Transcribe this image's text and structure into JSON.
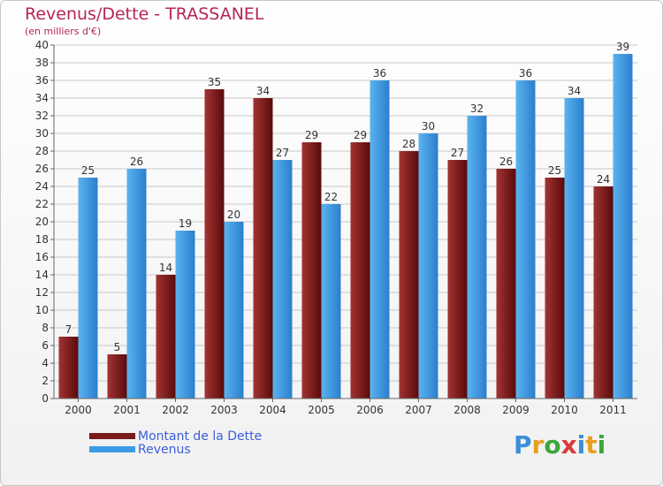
{
  "header": {
    "title": "Revenus/Dette - TRASSANEL",
    "subtitle": "(en milliers d'€)"
  },
  "legend": {
    "items": [
      {
        "label": "Montant de la Dette",
        "color": "#7a1a1a"
      },
      {
        "label": "Revenus",
        "color": "#3d9be6"
      }
    ]
  },
  "logo": {
    "letters": [
      "P",
      "r",
      "o",
      "x",
      "i",
      "t",
      "i"
    ],
    "colors": [
      "#3a8fd8",
      "#e8a020",
      "#3aa83a",
      "#d83a3a",
      "#3a8fd8",
      "#e8a020",
      "#3aa83a"
    ]
  },
  "colors": {
    "debt_light": "#a33434",
    "debt_dark": "#5a0a0a",
    "revenue_light": "#5cb3f0",
    "revenue_dark": "#2a7fcc",
    "grid": "#c8c8c8",
    "axis_text": "#333333"
  },
  "chart_data": {
    "type": "bar",
    "categories": [
      "2000",
      "2001",
      "2002",
      "2003",
      "2004",
      "2005",
      "2006",
      "2007",
      "2008",
      "2009",
      "2010",
      "2011"
    ],
    "series": [
      {
        "name": "Montant de la Dette",
        "values": [
          7,
          5,
          14,
          35,
          34,
          29,
          29,
          28,
          27,
          26,
          25,
          24
        ]
      },
      {
        "name": "Revenus",
        "values": [
          25,
          26,
          19,
          20,
          27,
          22,
          36,
          30,
          32,
          36,
          34,
          39
        ]
      }
    ],
    "ylim": [
      0,
      40
    ],
    "ytick_step": 2,
    "grid": true,
    "legend_position": "bottom-left"
  }
}
